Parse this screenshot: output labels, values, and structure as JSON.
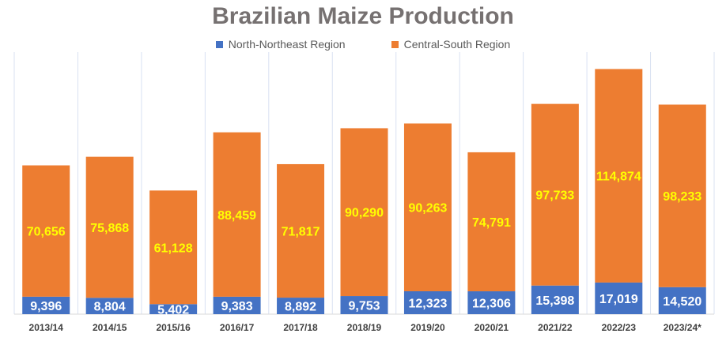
{
  "chart_data": {
    "type": "bar",
    "stacked": true,
    "title": "Brazilian Maize Production",
    "xlabel": "",
    "ylabel": "",
    "ylim": [
      0,
      141000
    ],
    "grid": "vertical category separators",
    "legend_position": "top",
    "categories": [
      "2013/14",
      "2014/15",
      "2015/16",
      "2016/17",
      "2017/18",
      "2018/19",
      "2019/20",
      "2020/21",
      "2021/22",
      "2022/23",
      "2023/24*"
    ],
    "series": [
      {
        "name": "North-Northeast Region",
        "color": "#4472C4",
        "label_color": "#FFFFFF",
        "values": [
          9396,
          8804,
          5402,
          9383,
          8892,
          9753,
          12323,
          12306,
          15398,
          17019,
          14520
        ]
      },
      {
        "name": "Central-South Region",
        "color": "#ED7D31",
        "label_color": "#FFFF00",
        "values": [
          70656,
          75868,
          61128,
          88459,
          71817,
          90290,
          90263,
          74791,
          97733,
          114874,
          98233
        ]
      }
    ]
  }
}
